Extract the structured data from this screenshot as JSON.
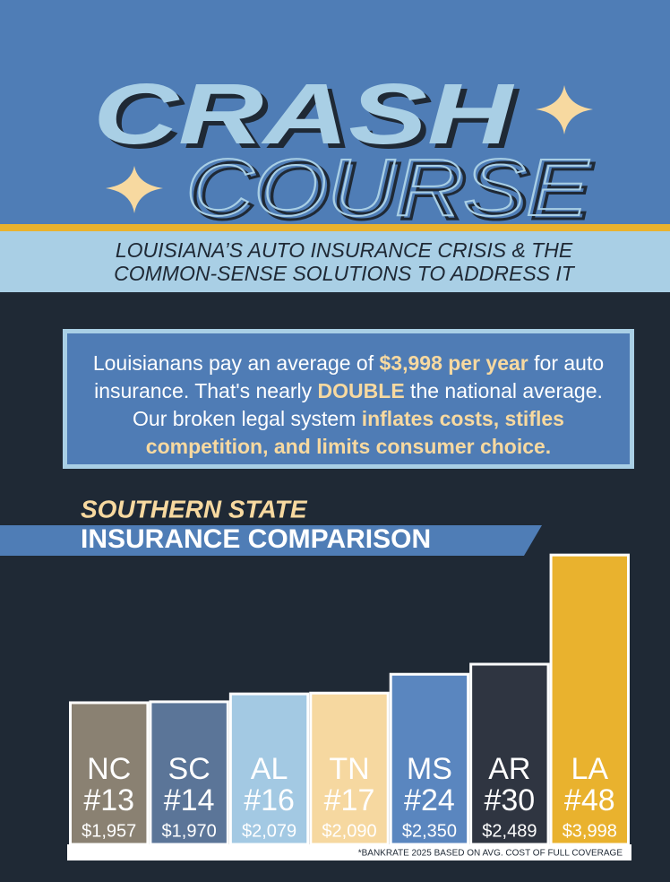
{
  "header": {
    "title_line1": "CRASH",
    "title_line2": "COURSE",
    "subtitle_line1": "LOUISIANA’S AUTO INSURANCE CRISIS & THE",
    "subtitle_line2": "COMMON-SENSE SOLUTIONS TO ADDRESS IT"
  },
  "intro": [
    {
      "text": "Louisianans pay an average of ",
      "strong": false
    },
    {
      "text": "$3,998 per year",
      "strong": true
    },
    {
      "text": " for auto insurance. That's nearly ",
      "strong": false
    },
    {
      "text": "DOUBLE",
      "strong": true
    },
    {
      "text": " the national average. Our broken legal system ",
      "strong": false
    },
    {
      "text": "inflates costs, stifles competition, and limits consumer choice.",
      "strong": true
    }
  ],
  "chart_data": {
    "type": "bar",
    "title_line1": "SOUTHERN STATE",
    "title_line2": "INSURANCE COMPARISON",
    "categories": [
      "NC",
      "SC",
      "AL",
      "TN",
      "MS",
      "AR",
      "LA"
    ],
    "ranks": [
      "#13",
      "#14",
      "#16",
      "#17",
      "#24",
      "#30",
      "#48"
    ],
    "values": [
      1957,
      1970,
      2079,
      2090,
      2350,
      2489,
      3998
    ],
    "value_labels": [
      "$1,957",
      "$1,970",
      "$2,079",
      "$2,090",
      "$2,350",
      "$2,489",
      "$3,998"
    ],
    "colors": [
      "#8a8172",
      "#5b7598",
      "#a3c9e3",
      "#f6d8a0",
      "#5a86bf",
      "#2f3541",
      "#e9b22e"
    ],
    "ylim": [
      0,
      4000
    ],
    "note": "*BANKRATE 2025 BASED ON AVG. COST OF FULL COVERAGE"
  }
}
